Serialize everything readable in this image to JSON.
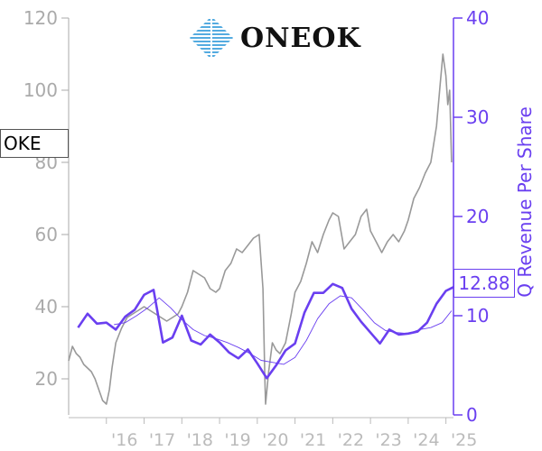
{
  "logo": {
    "brand": "ONEOK"
  },
  "ticker": "OKE",
  "last_value_label": "12.88",
  "colors": {
    "price": "#999999",
    "revenue": "#6a3ff0",
    "revenue_avg": "#6a3ff0",
    "left_axis": "#aaaaaa"
  },
  "chart_data": {
    "type": "line",
    "title": "",
    "xlabel": "",
    "x_ticks": [
      "'16",
      "'17",
      "'18",
      "'19",
      "'20",
      "'21",
      "'22",
      "'23",
      "'24",
      "'25"
    ],
    "y_left": {
      "label": "",
      "ticks": [
        20,
        40,
        60,
        80,
        100,
        120
      ],
      "lim": [
        10,
        120
      ]
    },
    "y_right": {
      "label": "Q Revenue Per Share",
      "ticks": [
        0,
        10,
        20,
        30,
        40
      ],
      "lim": [
        0,
        40
      ]
    },
    "series": [
      {
        "name": "",
        "axis": "left",
        "style": "price",
        "x": [
          2015.0,
          2015.1,
          2015.2,
          2015.3,
          2015.4,
          2015.5,
          2015.6,
          2015.7,
          2015.8,
          2015.9,
          2016.0,
          2016.08,
          2016.15,
          2016.25,
          2016.4,
          2016.55,
          2016.7,
          2016.85,
          2017.0,
          2017.15,
          2017.3,
          2017.45,
          2017.6,
          2017.75,
          2017.9,
          2018.0,
          2018.15,
          2018.3,
          2018.45,
          2018.6,
          2018.75,
          2018.9,
          2019.0,
          2019.15,
          2019.3,
          2019.45,
          2019.6,
          2019.75,
          2019.9,
          2020.05,
          2020.15,
          2020.2,
          2020.22,
          2020.3,
          2020.4,
          2020.5,
          2020.6,
          2020.75,
          2020.9,
          2021.0,
          2021.15,
          2021.3,
          2021.45,
          2021.6,
          2021.75,
          2021.9,
          2022.0,
          2022.15,
          2022.3,
          2022.45,
          2022.6,
          2022.75,
          2022.9,
          2023.0,
          2023.15,
          2023.3,
          2023.45,
          2023.6,
          2023.75,
          2023.9,
          2024.0,
          2024.15,
          2024.3,
          2024.45,
          2024.6,
          2024.75,
          2024.85,
          2024.92,
          2025.0,
          2025.05,
          2025.1,
          2025.15
        ],
        "values": [
          25,
          29,
          27,
          26,
          24,
          23,
          22,
          20,
          17,
          14,
          13,
          17,
          23,
          30,
          34,
          37,
          38,
          39,
          40,
          39,
          38,
          37,
          36,
          37,
          38,
          40,
          44,
          50,
          49,
          48,
          45,
          44,
          45,
          50,
          52,
          56,
          55,
          57,
          59,
          60,
          45,
          20,
          13,
          22,
          30,
          28,
          27,
          30,
          38,
          44,
          47,
          52,
          58,
          55,
          60,
          64,
          66,
          65,
          56,
          58,
          60,
          65,
          67,
          61,
          58,
          55,
          58,
          60,
          58,
          61,
          64,
          70,
          73,
          77,
          80,
          90,
          102,
          110,
          104,
          96,
          100,
          80
        ]
      },
      {
        "name": "",
        "axis": "right",
        "style": "revenue",
        "x": [
          2015.25,
          2015.5,
          2015.75,
          2016.0,
          2016.25,
          2016.5,
          2016.75,
          2017.0,
          2017.25,
          2017.5,
          2017.75,
          2018.0,
          2018.25,
          2018.5,
          2018.75,
          2019.0,
          2019.25,
          2019.5,
          2019.75,
          2020.0,
          2020.25,
          2020.5,
          2020.75,
          2021.0,
          2021.25,
          2021.5,
          2021.75,
          2022.0,
          2022.25,
          2022.5,
          2022.75,
          2023.0,
          2023.25,
          2023.5,
          2023.75,
          2024.0,
          2024.25,
          2024.5,
          2024.75,
          2025.0,
          2025.2
        ],
        "values": [
          8.8,
          10.2,
          9.2,
          9.3,
          8.6,
          9.9,
          10.6,
          12.1,
          12.6,
          7.3,
          7.8,
          10.0,
          7.5,
          7.1,
          8.1,
          7.3,
          6.3,
          5.7,
          6.6,
          5.2,
          3.7,
          5.0,
          6.5,
          7.2,
          10.3,
          12.3,
          12.3,
          13.2,
          12.8,
          10.7,
          9.4,
          8.3,
          7.2,
          8.6,
          8.1,
          8.2,
          8.4,
          9.3,
          11.2,
          12.5,
          12.88
        ]
      },
      {
        "name": "",
        "axis": "right",
        "style": "revenue_avg",
        "x": [
          2016.2,
          2016.5,
          2016.8,
          2017.1,
          2017.4,
          2017.7,
          2018.0,
          2018.3,
          2018.6,
          2018.9,
          2019.2,
          2019.5,
          2019.8,
          2020.1,
          2020.4,
          2020.7,
          2021.0,
          2021.3,
          2021.6,
          2021.9,
          2022.2,
          2022.5,
          2022.8,
          2023.1,
          2023.4,
          2023.7,
          2024.0,
          2024.3,
          2024.6,
          2024.9,
          2025.15
        ],
        "values": [
          9.1,
          9.3,
          10.0,
          10.8,
          11.8,
          10.8,
          9.6,
          8.6,
          8.0,
          7.7,
          7.3,
          6.8,
          6.2,
          5.5,
          5.3,
          5.1,
          5.8,
          7.5,
          9.7,
          11.2,
          12.0,
          11.8,
          10.6,
          9.3,
          8.5,
          8.3,
          8.2,
          8.6,
          8.8,
          9.3,
          10.5
        ]
      }
    ]
  }
}
